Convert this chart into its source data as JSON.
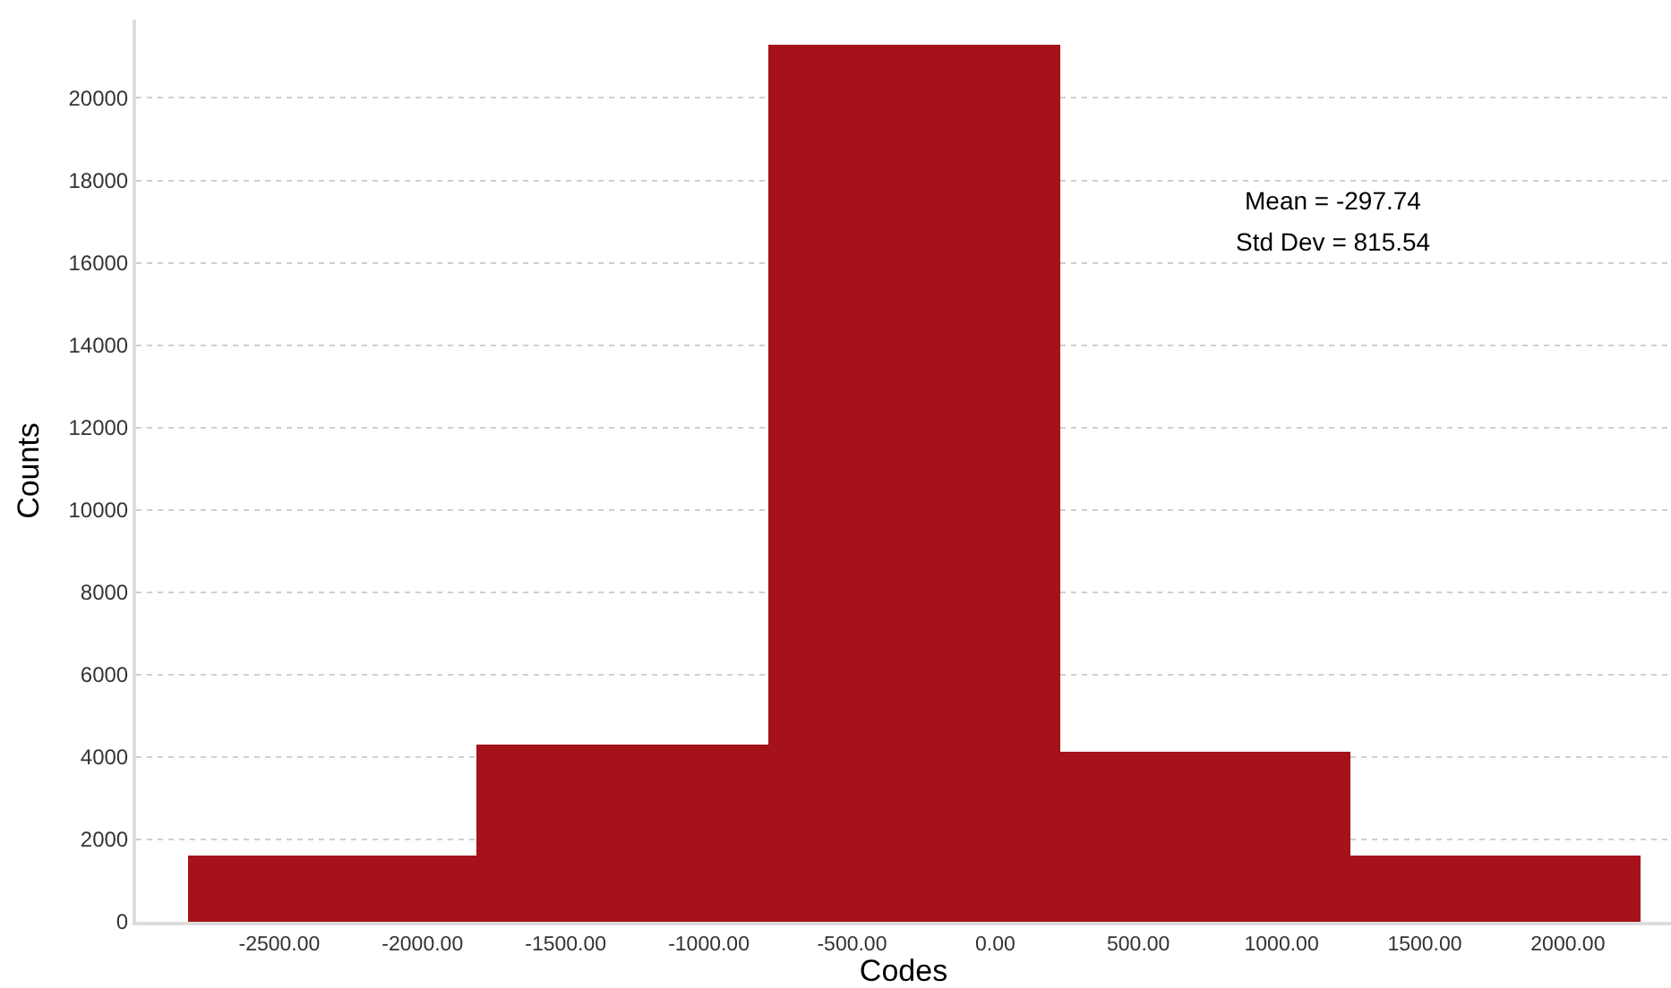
{
  "chart_data": {
    "type": "histogram",
    "xlabel": "Codes",
    "ylabel": "Counts",
    "bins": [
      -2820,
      -1810,
      -795,
      225,
      1240,
      2255
    ],
    "values": [
      1600,
      4300,
      21280,
      4130,
      1600
    ],
    "color": "#a51219",
    "xlim": [
      -3000,
      2360
    ],
    "xticks": [
      {
        "value": -2500,
        "label": "-2500.00"
      },
      {
        "value": -2000,
        "label": "-2000.00"
      },
      {
        "value": -1500,
        "label": "-1500.00"
      },
      {
        "value": -1000,
        "label": "-1000.00"
      },
      {
        "value": -500,
        "label": "-500.00"
      },
      {
        "value": 0,
        "label": "0.00"
      },
      {
        "value": 500,
        "label": "500.00"
      },
      {
        "value": 1000,
        "label": "1000.00"
      },
      {
        "value": 1500,
        "label": "1500.00"
      },
      {
        "value": 2000,
        "label": "2000.00"
      }
    ],
    "ylim": [
      0,
      21900
    ],
    "yticks": [
      0,
      2000,
      4000,
      6000,
      8000,
      10000,
      12000,
      14000,
      16000,
      18000,
      20000
    ],
    "grid": "y",
    "legend": false,
    "annotations": [
      "Mean = -297.74",
      "Std Dev = 815.54"
    ]
  }
}
